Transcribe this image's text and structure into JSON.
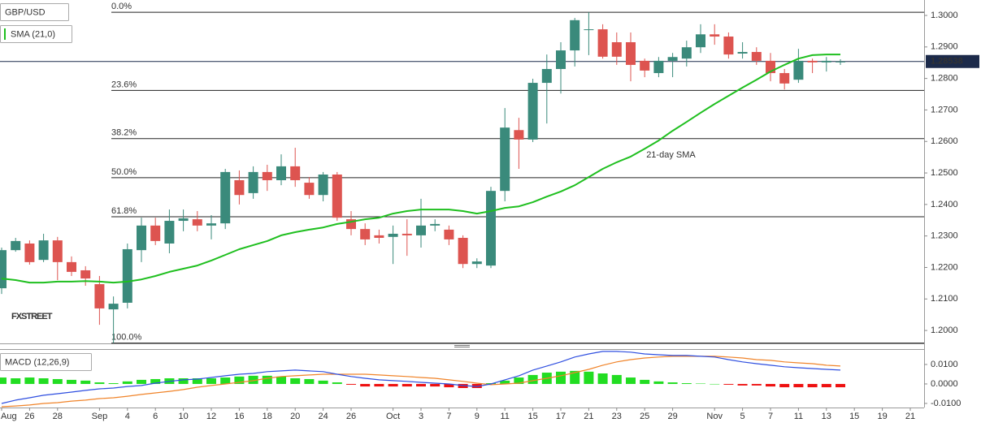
{
  "chart_data": [
    {
      "type": "candlestick",
      "title": "GBP/USD",
      "categories": [
        "Aug",
        null,
        "26",
        null,
        "28",
        null,
        null,
        "Sep",
        null,
        "4",
        null,
        "6",
        null,
        "10",
        null,
        "12",
        null,
        "16",
        null,
        "18",
        null,
        "20",
        null,
        "24",
        null,
        "26",
        null,
        null,
        "Oct",
        null,
        "3",
        null,
        "7",
        null,
        "9",
        null,
        "11",
        null,
        "15",
        null,
        "17",
        null,
        "21",
        null,
        "23",
        null,
        "25",
        null,
        "29",
        null,
        null,
        "Nov",
        null,
        "5",
        null,
        "7",
        null,
        "11",
        null,
        "13",
        null,
        "15",
        null,
        "19",
        null,
        "21"
      ],
      "open": [
        1.2134,
        1.2255,
        1.2276,
        1.2224,
        1.2286,
        1.2217,
        1.2191,
        1.2147,
        1.2067,
        1.2088,
        1.2255,
        1.2333,
        1.2276,
        1.2348,
        1.2353,
        1.2333,
        1.234,
        1.2477,
        1.2436,
        1.2503,
        1.2477,
        1.2521,
        1.2469,
        1.243,
        1.2495,
        1.2353,
        1.2322,
        1.2302,
        1.2297,
        1.2307,
        1.2302,
        1.2333,
        1.232,
        1.2294,
        1.2211,
        1.2206,
        1.2443,
        1.2636,
        1.2606,
        1.2786,
        1.283,
        1.2889,
        1.2954,
        1.2956,
        1.2915,
        1.2915,
        1.2856,
        1.2817,
        1.2856,
        1.2863,
        1.2899,
        1.294,
        1.2933,
        1.2879,
        1.2884,
        1.2856,
        1.2817,
        1.2796,
        1.2856,
        1.2851,
        1.2851,
        null,
        null,
        null,
        null,
        null
      ],
      "high": [
        1.2263,
        1.2294,
        1.2286,
        1.2307,
        1.2297,
        1.2235,
        1.2204,
        1.2173,
        1.2108,
        1.2276,
        1.2358,
        1.2358,
        1.2384,
        1.2384,
        1.2379,
        1.2366,
        1.2513,
        1.2508,
        1.2521,
        1.2526,
        1.2559,
        1.258,
        1.2487,
        1.2503,
        1.2503,
        1.2379,
        1.234,
        1.232,
        1.2333,
        1.2353,
        1.2418,
        1.2353,
        1.2333,
        1.2302,
        1.2229,
        1.2456,
        1.2706,
        1.2675,
        1.2799,
        1.2876,
        1.2915,
        1.2992,
        1.301,
        1.2972,
        1.2946,
        1.2946,
        1.2863,
        1.2868,
        1.2881,
        1.292,
        1.2972,
        1.2972,
        1.2946,
        1.2915,
        1.2899,
        1.2881,
        1.283,
        1.2894,
        1.2863,
        1.2868,
        1.2861,
        null,
        null,
        null,
        null,
        null
      ],
      "low": [
        1.2116,
        1.225,
        1.2209,
        1.2217,
        1.216,
        1.2173,
        1.2142,
        1.2018,
        1.196,
        1.207,
        1.2217,
        1.2271,
        1.2245,
        1.2315,
        1.2315,
        1.2289,
        1.2322,
        1.24,
        1.2418,
        1.2443,
        1.2461,
        1.2456,
        1.2418,
        1.241,
        1.2348,
        1.2302,
        1.2271,
        1.2276,
        1.2211,
        1.2237,
        1.2263,
        1.2315,
        1.2271,
        1.2198,
        1.2198,
        1.2198,
        1.241,
        1.2513,
        1.2598,
        1.2657,
        1.2752,
        1.2838,
        1.2874,
        1.2863,
        1.2843,
        1.2791,
        1.2804,
        1.2804,
        1.2804,
        1.2838,
        1.2881,
        1.2907,
        1.2863,
        1.2863,
        1.2843,
        1.2791,
        1.2765,
        1.2786,
        1.2817,
        1.2822,
        1.2843,
        null,
        null,
        null,
        null,
        null
      ],
      "close": [
        1.2255,
        1.2284,
        1.2217,
        1.2286,
        1.2217,
        1.2186,
        1.2165,
        1.207,
        1.2085,
        1.2258,
        1.2333,
        1.2284,
        1.2348,
        1.2356,
        1.2333,
        1.234,
        1.2503,
        1.243,
        1.2503,
        1.2477,
        1.2521,
        1.2477,
        1.243,
        1.2495,
        1.2358,
        1.2322,
        1.2289,
        1.2294,
        1.2307,
        1.2302,
        1.2333,
        1.2338,
        1.2289,
        1.2211,
        1.2219,
        1.2443,
        1.2644,
        1.2606,
        1.2786,
        1.283,
        1.2889,
        1.2985,
        1.2956,
        1.2869,
        1.2869,
        1.2843,
        1.2825,
        1.2856,
        1.2868,
        1.2899,
        1.294,
        1.2933,
        1.2876,
        1.2884,
        1.2856,
        1.2817,
        1.2784,
        1.2856,
        1.2851,
        1.2856,
        1.28538,
        null,
        null,
        null,
        null,
        null
      ],
      "up_color": "#3a8a7b",
      "down_color": "#dd5450",
      "series": [
        {
          "name": "SMA (21,0)",
          "color": "#1fbf1f",
          "values": [
            1.2165,
            1.216,
            1.2152,
            1.2152,
            1.2155,
            1.2155,
            1.2157,
            1.2155,
            1.2152,
            1.2155,
            1.2162,
            1.2173,
            1.2186,
            1.2196,
            1.2206,
            1.2222,
            1.224,
            1.2258,
            1.2271,
            1.2284,
            1.2302,
            1.2312,
            1.232,
            1.2327,
            1.2338,
            1.2345,
            1.2353,
            1.2358,
            1.2371,
            1.2379,
            1.2384,
            1.2384,
            1.2384,
            1.2379,
            1.2371,
            1.2379,
            1.2389,
            1.2394,
            1.2407,
            1.2425,
            1.2441,
            1.2461,
            1.2487,
            1.2513,
            1.2534,
            1.2552,
            1.2577,
            1.2603,
            1.2634,
            1.2662,
            1.2691,
            1.2719,
            1.2745,
            1.2771,
            1.2796,
            1.2822,
            1.2843,
            1.2863,
            1.2874,
            1.2876,
            1.2876,
            null,
            null,
            null,
            null,
            null
          ]
        }
      ],
      "annotation": "21-day SMA",
      "fibonacci": [
        {
          "value": 1.301,
          "label": "0.0%"
        },
        {
          "value": 1.2762,
          "label": "23.6%"
        },
        {
          "value": 1.2609,
          "label": "38.2%"
        },
        {
          "value": 1.2485,
          "label": "50.0%"
        },
        {
          "value": 1.2361,
          "label": "61.8%"
        },
        {
          "value": 1.196,
          "label": "100.0%"
        }
      ],
      "last_price": 1.28538,
      "last_price_color": "#1c2a4a",
      "watermark": "FXSTREET",
      "ylim": [
        1.1959,
        1.3049
      ],
      "yticks": [
        {
          "value": 1.3,
          "label": "1.3000"
        },
        {
          "value": 1.29,
          "label": "1.2900"
        },
        {
          "value": 1.28,
          "label": "1.2800"
        },
        {
          "value": 1.27,
          "label": "1.2700"
        },
        {
          "value": 1.26,
          "label": "1.2600"
        },
        {
          "value": 1.25,
          "label": "1.2500"
        },
        {
          "value": 1.24,
          "label": "1.2400"
        },
        {
          "value": 1.23,
          "label": "1.2300"
        },
        {
          "value": 1.22,
          "label": "1.2200"
        },
        {
          "value": 1.21,
          "label": "1.2100"
        },
        {
          "value": 1.2,
          "label": "1.2000"
        }
      ]
    },
    {
      "type": "macd",
      "title": "MACD (12,26,9)",
      "histogram": {
        "positive_color": "#22dd22",
        "negative_color": "#ee1111",
        "values": [
          0.0033,
          0.0029,
          0.0033,
          0.0029,
          0.0025,
          0.0021,
          0.0017,
          0.0008,
          0.0004,
          0.0013,
          0.0021,
          0.0025,
          0.0029,
          0.0029,
          0.0029,
          0.0029,
          0.0033,
          0.0038,
          0.0042,
          0.0042,
          0.0038,
          0.0029,
          0.0025,
          0.0017,
          0.0008,
          -0.0004,
          -0.0013,
          -0.0013,
          -0.0013,
          -0.0013,
          -0.0013,
          -0.0013,
          -0.0017,
          -0.0021,
          -0.0021,
          0.0004,
          0.0017,
          0.0033,
          0.0046,
          0.0058,
          0.0063,
          0.0067,
          0.0063,
          0.0054,
          0.0046,
          0.0033,
          0.0021,
          0.0013,
          0.0008,
          0.0004,
          0.0002,
          0.0,
          -0.0004,
          -0.0008,
          -0.0008,
          -0.0013,
          -0.0017,
          -0.0017,
          -0.0017,
          -0.0017,
          -0.0017,
          null,
          null,
          null,
          null,
          null
        ]
      },
      "macd_line": {
        "color": "#2f4fe0",
        "values": [
          -0.01,
          -0.0083,
          -0.0071,
          -0.0058,
          -0.005,
          -0.0042,
          -0.0033,
          -0.0025,
          -0.0021,
          -0.0013,
          -0.0008,
          0.0004,
          0.0013,
          0.0021,
          0.0025,
          0.0033,
          0.0042,
          0.005,
          0.0054,
          0.0063,
          0.0067,
          0.0071,
          0.0067,
          0.0063,
          0.005,
          0.0038,
          0.0029,
          0.0021,
          0.0017,
          0.0013,
          0.0008,
          0.0004,
          0.0,
          -0.0008,
          -0.0013,
          0.0,
          0.0021,
          0.0042,
          0.0071,
          0.0092,
          0.0113,
          0.0138,
          0.0154,
          0.0167,
          0.0167,
          0.0163,
          0.0154,
          0.015,
          0.0146,
          0.0146,
          0.0142,
          0.0138,
          0.0125,
          0.0113,
          0.0104,
          0.0096,
          0.0088,
          0.0083,
          0.0079,
          0.0075,
          0.0071,
          null,
          null,
          null,
          null,
          null
        ]
      },
      "signal_line": {
        "color": "#f0842a",
        "values": [
          -0.0117,
          -0.0113,
          -0.0108,
          -0.01,
          -0.0096,
          -0.0088,
          -0.0083,
          -0.0075,
          -0.0071,
          -0.0063,
          -0.0054,
          -0.0046,
          -0.0038,
          -0.0029,
          -0.0017,
          -0.0008,
          0.0,
          0.0008,
          0.0017,
          0.0029,
          0.0038,
          0.0042,
          0.0046,
          0.005,
          0.005,
          0.005,
          0.005,
          0.0046,
          0.0042,
          0.0038,
          0.0033,
          0.0029,
          0.0021,
          0.0013,
          0.0004,
          -0.0004,
          0.0,
          0.0004,
          0.0017,
          0.0029,
          0.0042,
          0.0058,
          0.0075,
          0.0096,
          0.0113,
          0.0125,
          0.0133,
          0.0138,
          0.0142,
          0.0142,
          0.0142,
          0.0142,
          0.0138,
          0.0133,
          0.0125,
          0.0121,
          0.0113,
          0.0108,
          0.0104,
          0.0096,
          0.0092,
          null,
          null,
          null,
          null,
          null
        ]
      },
      "ylim": [
        -0.0121,
        0.0179
      ],
      "yticks": [
        {
          "value": 0.01,
          "label": "0.0100"
        },
        {
          "value": 0.0,
          "label": "0.0000"
        },
        {
          "value": -0.01,
          "label": "-0.0100"
        }
      ]
    }
  ]
}
